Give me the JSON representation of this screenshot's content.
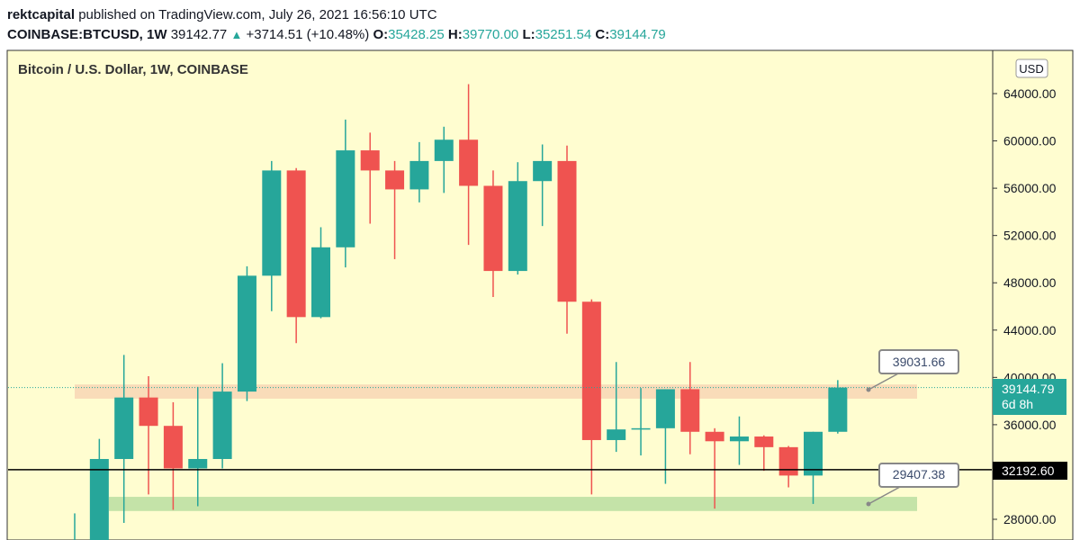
{
  "header": {
    "author": "rektcapital",
    "published_text": "published on TradingView.com, July 26, 2021 16:56:10 UTC",
    "symbol": "COINBASE:BTCUSD, 1W",
    "price": "39142.77",
    "change": "+3714.51 (+10.48%)",
    "o_label": "O:",
    "o_value": "35428.25",
    "h_label": "H:",
    "h_value": "39770.00",
    "l_label": "L:",
    "l_value": "35251.54",
    "c_label": "C:",
    "c_value": "39144.79"
  },
  "chart": {
    "title": "Bitcoin / U.S. Dollar, 1W, COINBASE",
    "currency_button": "USD",
    "last_price_label": "39144.79",
    "countdown_label": "6d 8h",
    "hline_label": "32192.60",
    "callout_upper": "39031.66",
    "callout_lower": "29407.38"
  },
  "colors": {
    "background": "#fffdd0",
    "bull": "#26a69a",
    "bear": "#ef5350",
    "resistance_zone": "#f9dcb9",
    "support_zone": "#c4e3a8"
  },
  "chart_data": {
    "type": "candlestick",
    "y_axis": {
      "min": 25000,
      "max": 67000,
      "ticks": [
        28000,
        36000,
        40000,
        44000,
        48000,
        52000,
        56000,
        60000,
        64000
      ]
    },
    "horizontal_line": 32192.6,
    "resistance_zone": [
      38200,
      39400
    ],
    "support_zone": [
      28700,
      29900
    ],
    "candles": [
      {
        "o": 25000,
        "h": 28500,
        "l": 25000,
        "c": 25000
      },
      {
        "o": 25000,
        "h": 34800,
        "l": 25000,
        "c": 33100
      },
      {
        "o": 33100,
        "h": 41900,
        "l": 27700,
        "c": 38300
      },
      {
        "o": 38300,
        "h": 40100,
        "l": 30100,
        "c": 35900
      },
      {
        "o": 35900,
        "h": 37900,
        "l": 28800,
        "c": 32300
      },
      {
        "o": 32300,
        "h": 39200,
        "l": 29100,
        "c": 33100
      },
      {
        "o": 33100,
        "h": 41200,
        "l": 32300,
        "c": 38800
      },
      {
        "o": 38800,
        "h": 49400,
        "l": 38000,
        "c": 48600
      },
      {
        "o": 48600,
        "h": 58300,
        "l": 45600,
        "c": 57500
      },
      {
        "o": 57500,
        "h": 57700,
        "l": 42900,
        "c": 45100
      },
      {
        "o": 45100,
        "h": 52700,
        "l": 45000,
        "c": 51000
      },
      {
        "o": 51000,
        "h": 61800,
        "l": 49300,
        "c": 59200
      },
      {
        "o": 59200,
        "h": 60700,
        "l": 53000,
        "c": 57500
      },
      {
        "o": 57500,
        "h": 58300,
        "l": 50000,
        "c": 55900
      },
      {
        "o": 55900,
        "h": 59900,
        "l": 54800,
        "c": 58300
      },
      {
        "o": 58300,
        "h": 61200,
        "l": 55600,
        "c": 60100
      },
      {
        "o": 60100,
        "h": 64800,
        "l": 51200,
        "c": 56200
      },
      {
        "o": 56200,
        "h": 57500,
        "l": 46800,
        "c": 49000
      },
      {
        "o": 49000,
        "h": 58200,
        "l": 48700,
        "c": 56600
      },
      {
        "o": 56600,
        "h": 59700,
        "l": 52800,
        "c": 58300
      },
      {
        "o": 58300,
        "h": 59600,
        "l": 43700,
        "c": 46400
      },
      {
        "o": 46400,
        "h": 46600,
        "l": 30100,
        "c": 34700
      },
      {
        "o": 34700,
        "h": 41300,
        "l": 33700,
        "c": 35600
      },
      {
        "o": 35600,
        "h": 39100,
        "l": 33400,
        "c": 35700
      },
      {
        "o": 35700,
        "h": 39000,
        "l": 31000,
        "c": 39000
      },
      {
        "o": 39000,
        "h": 41300,
        "l": 33500,
        "c": 35400
      },
      {
        "o": 35400,
        "h": 35700,
        "l": 28900,
        "c": 34600
      },
      {
        "o": 34600,
        "h": 36700,
        "l": 32600,
        "c": 35000
      },
      {
        "o": 35000,
        "h": 35100,
        "l": 32100,
        "c": 34100
      },
      {
        "o": 34100,
        "h": 34200,
        "l": 30700,
        "c": 31700
      },
      {
        "o": 31700,
        "h": 35400,
        "l": 29300,
        "c": 35400
      },
      {
        "o": 35400,
        "h": 39770,
        "l": 35250,
        "c": 39145
      }
    ]
  }
}
